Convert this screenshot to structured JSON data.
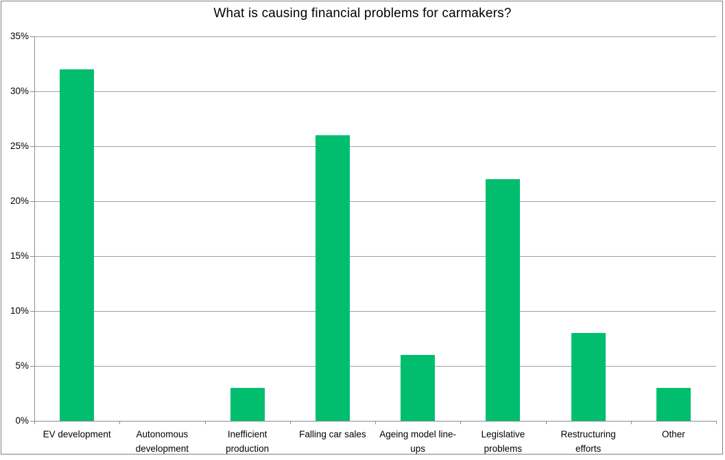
{
  "chart": {
    "title": "What is causing financial problems for carmakers?"
  },
  "chart_data": {
    "type": "bar",
    "title": "What is causing financial problems for carmakers?",
    "categories": [
      "EV development",
      "Autonomous development",
      "Inefficient production",
      "Falling car sales",
      "Ageing model line-ups",
      "Legislative problems",
      "Restructuring efforts",
      "Other"
    ],
    "values": [
      32,
      0,
      3,
      26,
      6,
      22,
      8,
      3
    ],
    "unit": "%",
    "xlabel": "",
    "ylabel": "",
    "ylim": [
      0,
      35
    ],
    "ytick_step": 5,
    "ytick_labels": [
      "0%",
      "5%",
      "10%",
      "15%",
      "20%",
      "25%",
      "30%",
      "35%"
    ],
    "grid": true,
    "legend": "none",
    "colors": {
      "bar": "#00BE6E",
      "gridline": "#9E9E9E",
      "axis": "#8C8C8C",
      "frame_border": "#7F7F7F",
      "text": "#000000",
      "background": "#FFFFFF"
    }
  }
}
